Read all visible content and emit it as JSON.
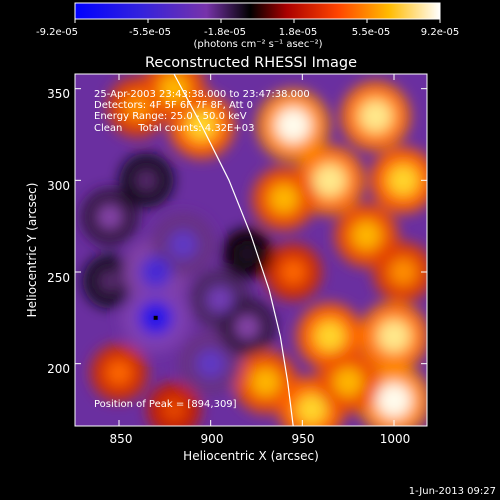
{
  "colorbar": {
    "tick_labels": [
      "-9.2e-05",
      "-5.5e-05",
      "-1.8e-05",
      "1.8e-05",
      "5.5e-05",
      "9.2e-05"
    ],
    "units_label": "(photons cm⁻² s⁻¹ asec⁻²)"
  },
  "plot": {
    "title": "Reconstructed RHESSI Image",
    "xlabel": "Heliocentric X (arcsec)",
    "ylabel": "Heliocentric Y (arcsec)",
    "x_ticks": [
      "850",
      "900",
      "950",
      "1000"
    ],
    "y_ticks": [
      "350",
      "300",
      "250",
      "200"
    ],
    "annotations": {
      "time_range": "25-Apr-2003 23:43:38.000 to 23:47:38.000",
      "detectors": "Detectors: 4F 5F 6F 7F 8F, Att 0",
      "energy": "Energy Range: 25.0 - 50.0 keV",
      "method": "Clean     Total counts: 4.32E+03",
      "peak": "Position of Peak = [894,309]"
    }
  },
  "footer": {
    "date": "1-Jun-2013 09:27"
  },
  "chart_data": {
    "type": "heatmap",
    "title": "Reconstructed RHESSI Image",
    "xlabel": "Heliocentric X (arcsec)",
    "ylabel": "Heliocentric Y (arcsec)",
    "xlim": [
      826,
      1018
    ],
    "ylim": [
      166,
      358
    ],
    "color_range": [
      -9.2e-05,
      9.2e-05
    ],
    "colormap": [
      "#0000ff",
      "#5533cc",
      "#8844aa",
      "#000000",
      "#bb1100",
      "#ff6600",
      "#ffcc00",
      "#ffffff"
    ],
    "peak": [
      894,
      309
    ],
    "limb_curve": [
      [
        880,
        358
      ],
      [
        895,
        330
      ],
      [
        910,
        300
      ],
      [
        922,
        270
      ],
      [
        932,
        240
      ],
      [
        938,
        215
      ],
      [
        942,
        190
      ],
      [
        945,
        166
      ]
    ],
    "blobs": [
      {
        "x": 945,
        "y": 330,
        "value": 9e-05
      },
      {
        "x": 990,
        "y": 335,
        "value": 8e-05
      },
      {
        "x": 1005,
        "y": 300,
        "value": 7e-05
      },
      {
        "x": 965,
        "y": 300,
        "value": 8e-05
      },
      {
        "x": 940,
        "y": 290,
        "value": 6e-05
      },
      {
        "x": 895,
        "y": 330,
        "value": 7e-05
      },
      {
        "x": 860,
        "y": 340,
        "value": 5e-05
      },
      {
        "x": 880,
        "y": 350,
        "value": 6e-05
      },
      {
        "x": 985,
        "y": 270,
        "value": 6e-05
      },
      {
        "x": 1005,
        "y": 250,
        "value": 5e-05
      },
      {
        "x": 1000,
        "y": 215,
        "value": 8e-05
      },
      {
        "x": 965,
        "y": 215,
        "value": 7e-05
      },
      {
        "x": 945,
        "y": 250,
        "value": 4e-05
      },
      {
        "x": 930,
        "y": 190,
        "value": 6e-05
      },
      {
        "x": 955,
        "y": 175,
        "value": 7e-05
      },
      {
        "x": 1000,
        "y": 180,
        "value": 9e-05
      },
      {
        "x": 975,
        "y": 190,
        "value": 6e-05
      },
      {
        "x": 880,
        "y": 175,
        "value": 3e-05
      },
      {
        "x": 850,
        "y": 195,
        "value": 4e-05
      },
      {
        "x": 845,
        "y": 245,
        "value": -3e-05
      },
      {
        "x": 845,
        "y": 280,
        "value": -4e-05
      },
      {
        "x": 870,
        "y": 250,
        "value": -7e-05
      },
      {
        "x": 870,
        "y": 225,
        "value": -8e-05
      },
      {
        "x": 885,
        "y": 265,
        "value": -6e-05
      },
      {
        "x": 905,
        "y": 235,
        "value": -5e-05
      },
      {
        "x": 900,
        "y": 200,
        "value": -6e-05
      },
      {
        "x": 865,
        "y": 300,
        "value": -3e-05
      },
      {
        "x": 920,
        "y": 260,
        "value": -2e-05
      },
      {
        "x": 920,
        "y": 220,
        "value": -4e-05
      }
    ]
  }
}
